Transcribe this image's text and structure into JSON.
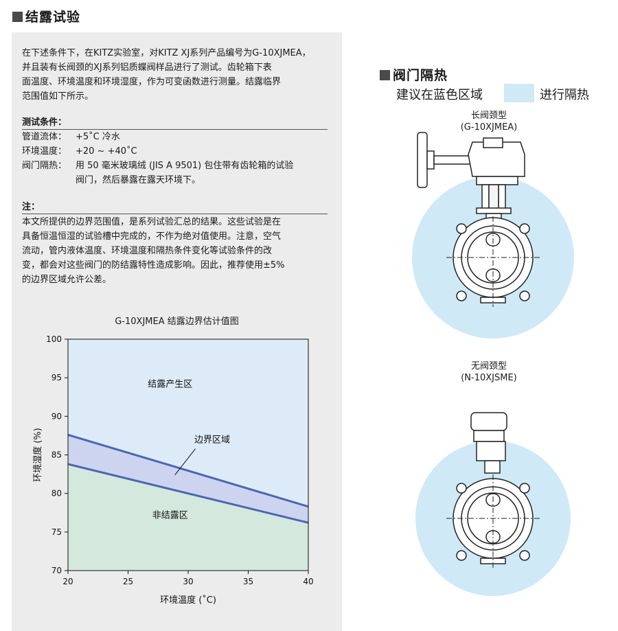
{
  "left": {
    "title": "结露试验",
    "intro": [
      "在下述条件下，在KITZ实验室，对KITZ XJ系列产品编号为G-10XJMEA，",
      "并且装有长阀颈的XJ系列铝质蝶阀样品进行了测试。齿轮箱下表",
      "面温度、环境温度和环境湿度，作为可变函数进行测量。结露临界",
      "范围值如下所示。"
    ],
    "conditions_heading": "测试条件：",
    "conditions": [
      {
        "key": "管道流体：",
        "value": "+5˚C 冷水"
      },
      {
        "key": "环境温度：",
        "value": "+20 ~ +40˚C"
      },
      {
        "key": "阀门隔热：",
        "value": "用 50 毫米玻璃绒 (JIS A 9501) 包住带有齿轮箱的试验"
      },
      {
        "key": "",
        "value": "阀门，然后暴露在露天环境下。"
      }
    ],
    "notes_heading": "注：",
    "notes": [
      "本文所提供的边界范围值，是系列试验汇总的结果。这些试验是在",
      "具备恒温恒湿的试验槽中完成的，不作为绝对值使用。注意，空气",
      "流动，管内液体温度、环境温度和隔热条件变化等试验条件的改",
      "变，都会对这些阀门的防结露特性造成影响。因此，推荐使用±5%",
      "的边界区域允许公差。"
    ]
  },
  "chart_data": {
    "type": "area",
    "title": "G-10XJMEA  结露边界估计值图",
    "xlabel": "环境温度 (˚C)",
    "ylabel": "环境湿度 (%)",
    "xlim": [
      20,
      40
    ],
    "ylim": [
      70,
      100
    ],
    "xticks": [
      20,
      25,
      30,
      35,
      40
    ],
    "yticks": [
      70,
      75,
      80,
      85,
      90,
      95,
      100
    ],
    "series": [
      {
        "name": "upper",
        "x": [
          20,
          40
        ],
        "values": [
          87.6,
          78.3
        ]
      },
      {
        "name": "lower",
        "x": [
          20,
          40
        ],
        "values": [
          83.8,
          76.2
        ]
      }
    ],
    "regions": {
      "condensation": "结露产生区",
      "boundary": "边界区域",
      "no_condensation": "非结露区"
    },
    "colors": {
      "condensation": "#dcebf7",
      "boundary": "#cdd4f0",
      "no_condensation": "#d5e8de",
      "line": "#4b66b0"
    }
  },
  "right": {
    "title": "阀门隔热",
    "advice_before": "建议在蓝色区域",
    "advice_after": "进行隔热",
    "insulation_color": "#cfe9f7",
    "valve1": {
      "name": "长阀颈型",
      "code": "(G-10XJMEA)"
    },
    "valve2": {
      "name": "无阀颈型",
      "code": "(N-10XJSME)"
    }
  }
}
